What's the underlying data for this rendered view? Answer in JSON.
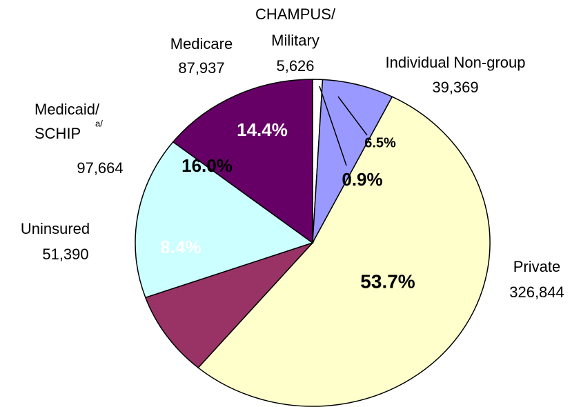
{
  "chart_data": {
    "type": "pie",
    "categories": [
      [
        "CHAMPUS/",
        "Military"
      ],
      [
        "Individual Non-group"
      ],
      [
        "Private"
      ],
      [
        "Uninsured"
      ],
      [
        "Medicaid/",
        "SCHIP"
      ],
      [
        "Medicare"
      ]
    ],
    "superscripts": [
      null,
      null,
      null,
      null,
      "a/",
      null
    ],
    "counts": [
      "5,626",
      "39,369",
      "326,844",
      "51,390",
      "97,664",
      "87,937"
    ],
    "values": [
      0.9,
      6.5,
      53.7,
      8.4,
      16.0,
      14.4
    ],
    "value_labels": [
      "0.9%",
      "6.5%",
      "53.7%",
      "8.4%",
      "16.0%",
      "14.4%"
    ],
    "colors": [
      "#ffffff",
      "#9999ff",
      "#ffffcc",
      "#993366",
      "#ccffff",
      "#660066"
    ],
    "value_label_colors": [
      "#000000",
      "#000000",
      "#000000",
      "#ffffff",
      "#000000",
      "#ffffff"
    ]
  }
}
